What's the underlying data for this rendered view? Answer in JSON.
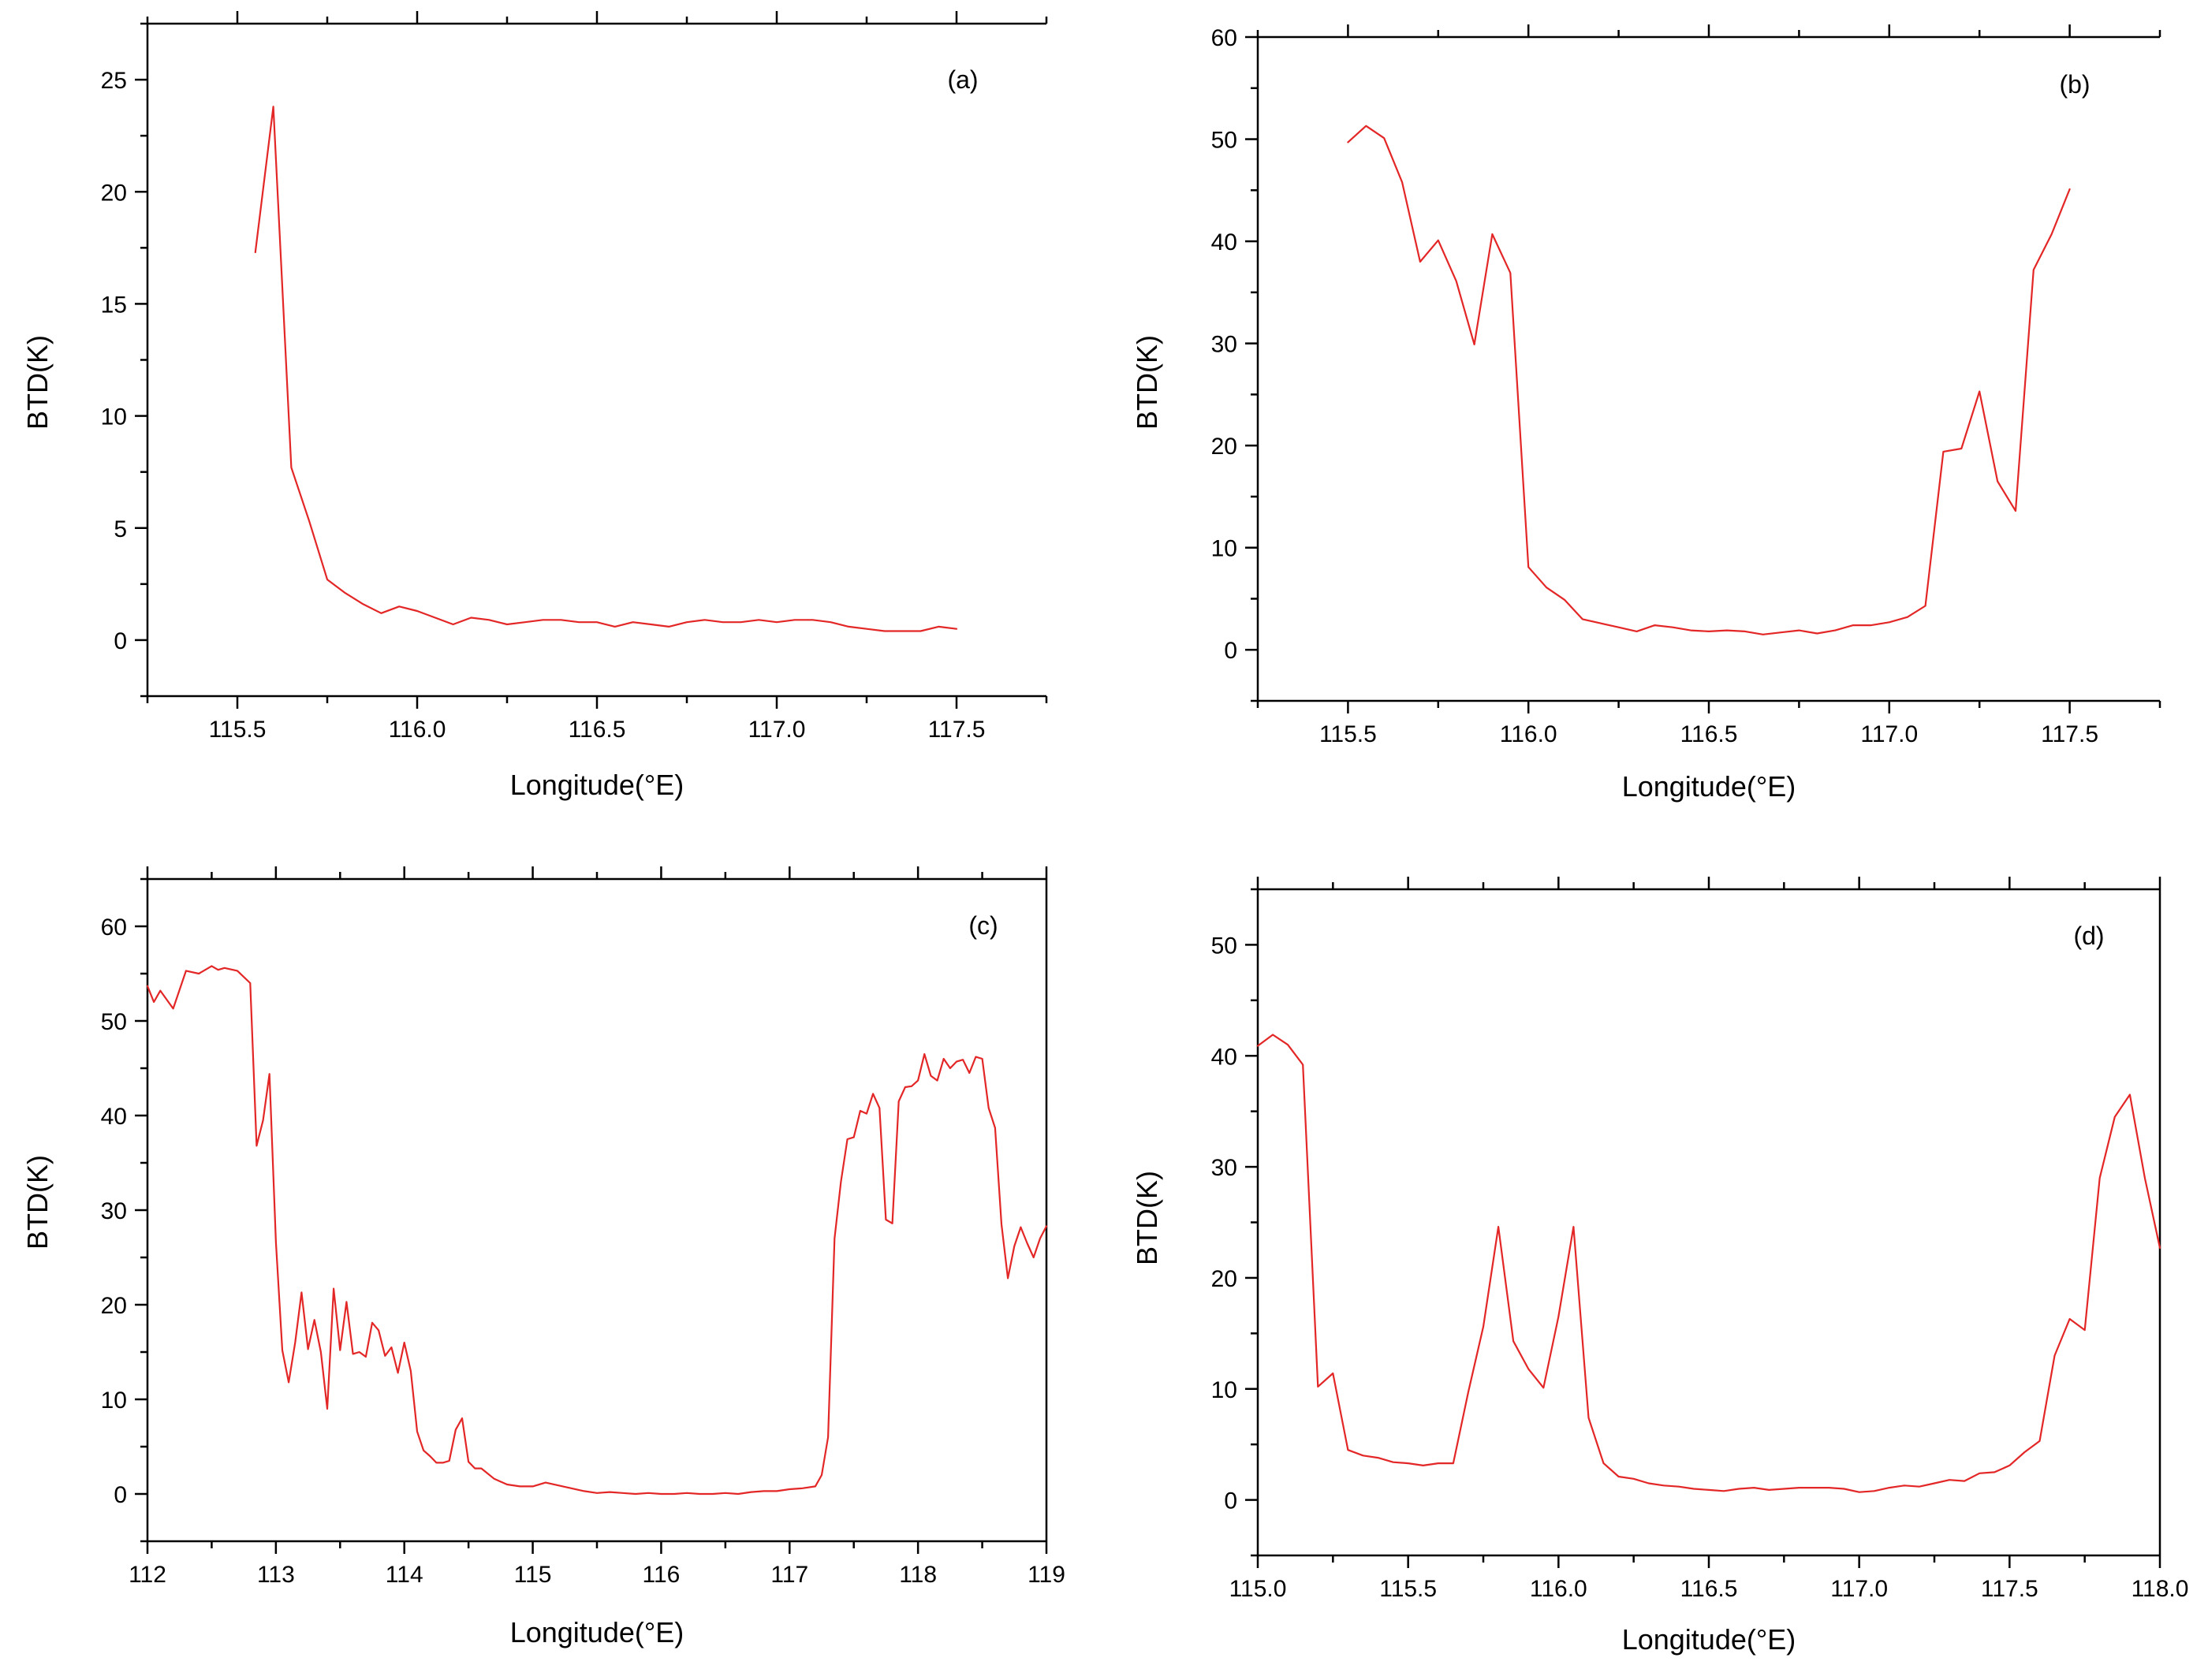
{
  "figure": {
    "series_color": "#e32626"
  },
  "chart_data": [
    {
      "type": "line",
      "panel_label": "(a)",
      "xlabel": "Longitude(°E)",
      "ylabel": "BTD(K)",
      "xlim": [
        115.25,
        117.75
      ],
      "ylim": [
        -2.5,
        27.5
      ],
      "xticks": [
        115.5,
        116.0,
        116.5,
        117.0,
        117.5
      ],
      "xtick_labels": [
        "115.5",
        "116.0",
        "116.5",
        "117.0",
        "117.5"
      ],
      "yticks": [
        0,
        5,
        10,
        15,
        20,
        25
      ],
      "ytick_labels": [
        "0",
        "5",
        "10",
        "15",
        "20",
        "25"
      ],
      "series": [
        {
          "name": "BTD",
          "x": [
            115.55,
            115.6,
            115.65,
            115.7,
            115.75,
            115.8,
            115.85,
            115.9,
            115.95,
            116.0,
            116.05,
            116.1,
            116.15,
            116.2,
            116.25,
            116.3,
            116.35,
            116.4,
            116.45,
            116.5,
            116.55,
            116.6,
            116.65,
            116.7,
            116.75,
            116.8,
            116.85,
            116.9,
            116.95,
            117.0,
            117.05,
            117.1,
            117.15,
            117.2,
            117.25,
            117.3,
            117.35,
            117.4,
            117.45,
            117.5
          ],
          "y": [
            17.3,
            23.8,
            7.7,
            5.3,
            2.7,
            2.1,
            1.6,
            1.2,
            1.5,
            1.3,
            1.0,
            0.7,
            1.0,
            0.9,
            0.7,
            0.8,
            0.9,
            0.9,
            0.8,
            0.8,
            0.6,
            0.8,
            0.7,
            0.6,
            0.8,
            0.9,
            0.8,
            0.8,
            0.9,
            0.8,
            0.9,
            0.9,
            0.8,
            0.6,
            0.5,
            0.4,
            0.4,
            0.4,
            0.6,
            0.5
          ]
        }
      ]
    },
    {
      "type": "line",
      "panel_label": "(b)",
      "xlabel": "Longitude(°E)",
      "ylabel": "BTD(K)",
      "xlim": [
        115.25,
        117.75
      ],
      "ylim": [
        -5,
        60
      ],
      "xticks": [
        115.5,
        116.0,
        116.5,
        117.0,
        117.5
      ],
      "xtick_labels": [
        "115.5",
        "116.0",
        "116.5",
        "117.0",
        "117.5"
      ],
      "yticks": [
        0,
        10,
        20,
        30,
        40,
        50,
        60
      ],
      "ytick_labels": [
        "0",
        "10",
        "20",
        "30",
        "40",
        "50",
        "60"
      ],
      "series": [
        {
          "name": "BTD",
          "x": [
            115.5,
            115.55,
            115.6,
            115.65,
            115.7,
            115.75,
            115.8,
            115.85,
            115.9,
            115.95,
            116.0,
            116.05,
            116.1,
            116.15,
            116.2,
            116.25,
            116.3,
            116.35,
            116.4,
            116.45,
            116.5,
            116.55,
            116.6,
            116.65,
            116.7,
            116.75,
            116.8,
            116.85,
            116.9,
            116.95,
            117.0,
            117.05,
            117.1,
            117.15,
            117.2,
            117.25,
            117.3,
            117.35,
            117.4,
            117.45,
            117.5
          ],
          "y": [
            49.7,
            51.3,
            50.1,
            45.8,
            38.0,
            40.1,
            36.1,
            29.9,
            40.7,
            36.9,
            8.1,
            6.1,
            4.9,
            3.0,
            2.6,
            2.2,
            1.8,
            2.4,
            2.2,
            1.9,
            1.8,
            1.9,
            1.8,
            1.5,
            1.7,
            1.9,
            1.6,
            1.9,
            2.4,
            2.4,
            2.7,
            3.2,
            4.3,
            19.4,
            19.7,
            25.3,
            16.5,
            13.6,
            37.2,
            40.7,
            45.1
          ]
        }
      ]
    },
    {
      "type": "line",
      "panel_label": "(c)",
      "xlabel": "Longitude(°E)",
      "ylabel": "BTD(K)",
      "xlim": [
        112,
        119
      ],
      "ylim": [
        -5,
        65
      ],
      "xticks": [
        112,
        113,
        114,
        115,
        116,
        117,
        118,
        119
      ],
      "xtick_labels": [
        "112",
        "113",
        "114",
        "115",
        "116",
        "117",
        "118",
        "119"
      ],
      "yticks": [
        0,
        10,
        20,
        30,
        40,
        50,
        60
      ],
      "ytick_labels": [
        "0",
        "10",
        "20",
        "30",
        "40",
        "50",
        "60"
      ],
      "series": [
        {
          "name": "BTD",
          "x": [
            112.0,
            112.05,
            112.1,
            112.2,
            112.3,
            112.4,
            112.5,
            112.55,
            112.6,
            112.7,
            112.8,
            112.85,
            112.9,
            112.95,
            113.0,
            113.05,
            113.1,
            113.15,
            113.2,
            113.25,
            113.3,
            113.35,
            113.4,
            113.45,
            113.5,
            113.55,
            113.6,
            113.65,
            113.7,
            113.75,
            113.8,
            113.85,
            113.9,
            113.95,
            114.0,
            114.05,
            114.1,
            114.15,
            114.2,
            114.25,
            114.3,
            114.35,
            114.4,
            114.45,
            114.5,
            114.55,
            114.6,
            114.7,
            114.8,
            114.9,
            115.0,
            115.1,
            115.2,
            115.3,
            115.4,
            115.5,
            115.6,
            115.7,
            115.8,
            115.9,
            116.0,
            116.1,
            116.2,
            116.3,
            116.4,
            116.5,
            116.6,
            116.7,
            116.8,
            116.9,
            117.0,
            117.1,
            117.2,
            117.25,
            117.3,
            117.35,
            117.4,
            117.45,
            117.5,
            117.55,
            117.6,
            117.65,
            117.7,
            117.75,
            117.8,
            117.85,
            117.9,
            117.95,
            118.0,
            118.05,
            118.1,
            118.15,
            118.2,
            118.25,
            118.3,
            118.35,
            118.4,
            118.45,
            118.5,
            118.55,
            118.6,
            118.65,
            118.7,
            118.75,
            118.8,
            118.85,
            118.9,
            118.95,
            119.0
          ],
          "y": [
            53.7,
            52.0,
            53.2,
            51.3,
            55.3,
            55.0,
            55.8,
            55.4,
            55.6,
            55.3,
            54.0,
            36.8,
            39.5,
            44.4,
            26.6,
            15.2,
            11.8,
            16.0,
            21.3,
            15.3,
            18.4,
            15.0,
            9.0,
            21.7,
            15.2,
            20.3,
            14.8,
            15.0,
            14.5,
            18.1,
            17.3,
            14.6,
            15.5,
            12.8,
            16.0,
            13.0,
            6.6,
            4.6,
            4.0,
            3.3,
            3.3,
            3.5,
            6.8,
            8.0,
            3.4,
            2.7,
            2.7,
            1.6,
            1.0,
            0.8,
            0.8,
            1.2,
            0.9,
            0.6,
            0.3,
            0.1,
            0.2,
            0.1,
            0.0,
            0.1,
            0.0,
            0.0,
            0.1,
            0.0,
            0.0,
            0.1,
            0.0,
            0.2,
            0.3,
            0.3,
            0.5,
            0.6,
            0.8,
            2.0,
            6.0,
            27.0,
            33.0,
            37.5,
            37.7,
            40.5,
            40.2,
            42.3,
            40.8,
            29.0,
            28.6,
            41.5,
            43.0,
            43.1,
            43.7,
            46.5,
            44.2,
            43.7,
            46.0,
            45.0,
            45.7,
            45.9,
            44.5,
            46.2,
            46.0,
            40.8,
            38.7,
            28.5,
            22.8,
            26.2,
            28.2,
            26.5,
            25.0,
            27.0,
            28.3
          ]
        }
      ]
    },
    {
      "type": "line",
      "panel_label": "(d)",
      "xlabel": "Longitude(°E)",
      "ylabel": "BTD(K)",
      "xlim": [
        115.0,
        118.0
      ],
      "ylim": [
        -5,
        55
      ],
      "xticks": [
        115.0,
        115.5,
        116.0,
        116.5,
        117.0,
        117.5,
        118.0
      ],
      "xtick_labels": [
        "115.0",
        "115.5",
        "116.0",
        "116.5",
        "117.0",
        "117.5",
        "118.0"
      ],
      "yticks": [
        0,
        10,
        20,
        30,
        40,
        50
      ],
      "ytick_labels": [
        "0",
        "10",
        "20",
        "30",
        "40",
        "50"
      ],
      "series": [
        {
          "name": "BTD",
          "x": [
            115.0,
            115.05,
            115.1,
            115.15,
            115.2,
            115.25,
            115.3,
            115.35,
            115.4,
            115.45,
            115.5,
            115.55,
            115.6,
            115.65,
            115.7,
            115.75,
            115.8,
            115.85,
            115.9,
            115.95,
            116.0,
            116.05,
            116.1,
            116.15,
            116.2,
            116.25,
            116.3,
            116.35,
            116.4,
            116.45,
            116.5,
            116.55,
            116.6,
            116.65,
            116.7,
            116.75,
            116.8,
            116.85,
            116.9,
            116.95,
            117.0,
            117.05,
            117.1,
            117.15,
            117.2,
            117.25,
            117.3,
            117.35,
            117.4,
            117.45,
            117.5,
            117.55,
            117.6,
            117.65,
            117.7,
            117.75,
            117.8,
            117.85,
            117.9,
            117.95,
            118.0
          ],
          "y": [
            40.9,
            41.9,
            41.0,
            39.2,
            10.2,
            11.4,
            4.5,
            4.0,
            3.8,
            3.4,
            3.3,
            3.1,
            3.3,
            3.3,
            9.7,
            15.6,
            24.6,
            14.3,
            11.8,
            10.1,
            16.5,
            24.6,
            7.4,
            3.3,
            2.1,
            1.9,
            1.5,
            1.3,
            1.2,
            1.0,
            0.9,
            0.8,
            1.0,
            1.1,
            0.9,
            1.0,
            1.1,
            1.1,
            1.1,
            1.0,
            0.7,
            0.8,
            1.1,
            1.3,
            1.2,
            1.5,
            1.8,
            1.7,
            2.4,
            2.5,
            3.1,
            4.3,
            5.3,
            13.0,
            16.3,
            15.3,
            29.0,
            34.5,
            36.5,
            29.0,
            22.7
          ]
        }
      ]
    }
  ]
}
